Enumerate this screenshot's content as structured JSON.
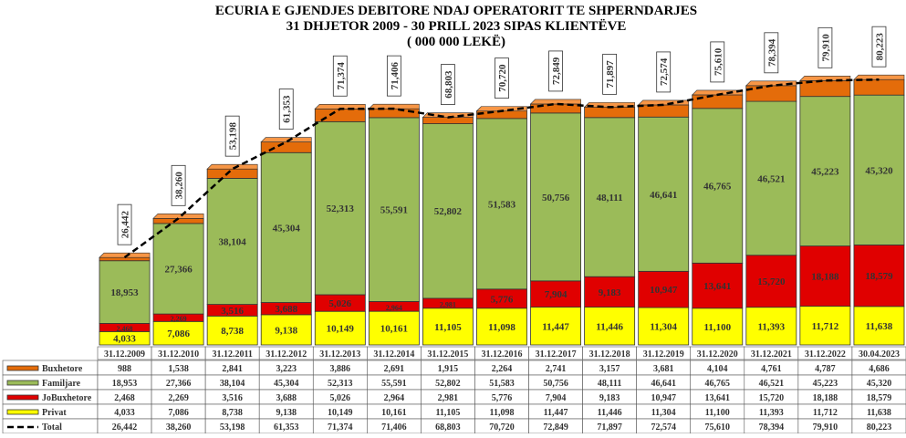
{
  "chart_data": {
    "type": "bar",
    "stacked": true,
    "title": [
      "ECURIA E GJENDJES DEBITORE NDAJ OPERATORIT TE SHPERNDARJES",
      "31 DHJETOR 2009  - 30  PRILL 2023 SIPAS KLIENTËVE",
      "( 000 000 LEKË)"
    ],
    "categories": [
      "31.12.2009",
      "31.12.2010",
      "31.12.2011",
      "31.12.2012",
      "31.12.2013",
      "31.12.2014",
      "31.12.2015",
      "31.12.2016",
      "31.12.2017",
      "31.12.2018",
      "31.12.2019",
      "31.12.2020",
      "31.12.2021",
      "31.12.2022",
      "30.04.2023"
    ],
    "series": [
      {
        "name": "Buxhetore",
        "color": "#e46c0a",
        "values": [
          988,
          1538,
          2841,
          3223,
          3886,
          2691,
          1915,
          2264,
          2741,
          3157,
          3681,
          4104,
          4761,
          4787,
          4686
        ],
        "labels": [
          "988",
          "1,538",
          "2,841",
          "3,223",
          "3,886",
          "2,691",
          "1,915",
          "2,264",
          "2,741",
          "3,157",
          "3,681",
          "4,104",
          "4,761",
          "4,787",
          "4,686"
        ]
      },
      {
        "name": "Familjare",
        "color": "#9bbb59",
        "values": [
          18953,
          27366,
          38104,
          45304,
          52313,
          55591,
          52802,
          51583,
          50756,
          48111,
          46641,
          46765,
          46521,
          45223,
          45320
        ],
        "labels": [
          "18,953",
          "27,366",
          "38,104",
          "45,304",
          "52,313",
          "55,591",
          "52,802",
          "51,583",
          "50,756",
          "48,111",
          "46,641",
          "46,765",
          "46,521",
          "45,223",
          "45,320"
        ]
      },
      {
        "name": "JoBuxhetore",
        "color": "#e00000",
        "values": [
          2468,
          2269,
          3516,
          3688,
          5026,
          2964,
          2981,
          5776,
          7904,
          9183,
          10947,
          13641,
          15720,
          18188,
          18579
        ],
        "labels": [
          "2,468",
          "2,269",
          "3,516",
          "3,688",
          "5,026",
          "2,964",
          "2,981",
          "5,776",
          "7,904",
          "9,183",
          "10,947",
          "13,641",
          "15,720",
          "18,188",
          "18,579"
        ]
      },
      {
        "name": "Privat",
        "color": "#ffff00",
        "values": [
          4033,
          7086,
          8738,
          9138,
          10149,
          10161,
          11105,
          11098,
          11447,
          11446,
          11304,
          11100,
          11393,
          11712,
          11638
        ],
        "labels": [
          "4,033",
          "7,086",
          "8,738",
          "9,138",
          "10,149",
          "10,161",
          "11,105",
          "11,098",
          "11,447",
          "11,446",
          "11,304",
          "11,100",
          "11,393",
          "11,712",
          "11,638"
        ]
      }
    ],
    "total": {
      "name": "Total",
      "values": [
        26442,
        38260,
        53198,
        61353,
        71374,
        71406,
        68803,
        70720,
        72849,
        71897,
        72574,
        75610,
        78394,
        79910,
        80223
      ],
      "labels": [
        "26,442",
        "38,260",
        "53,198",
        "61,353",
        "71,374",
        "71,406",
        "68,803",
        "70,720",
        "72,849",
        "71,897",
        "72,574",
        "75,610",
        "78,394",
        "79,910",
        "80,223"
      ]
    },
    "ylim": [
      0,
      82000
    ],
    "legend": "data-table-bottom"
  }
}
